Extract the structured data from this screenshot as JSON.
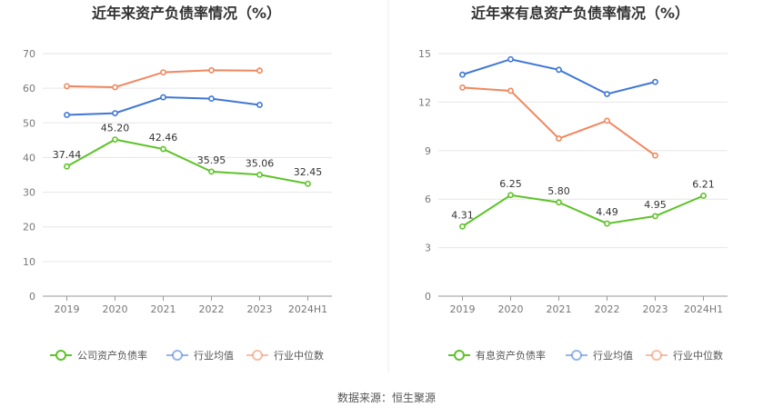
{
  "chart_data": [
    {
      "type": "line",
      "title": "近年来资产负债率情况（%）",
      "categories": [
        "2019",
        "2020",
        "2021",
        "2022",
        "2023",
        "2024H1"
      ],
      "ylim": [
        0,
        70
      ],
      "yticks": [
        0,
        10,
        20,
        30,
        40,
        50,
        60,
        70
      ],
      "grid": true,
      "legend_position": "bottom",
      "series": [
        {
          "name": "公司资产负债率",
          "color": "#5dc328",
          "labeled": true,
          "values": [
            37.44,
            45.2,
            42.46,
            35.95,
            35.06,
            32.45
          ]
        },
        {
          "name": "行业均值",
          "color": "#3f76d6",
          "labeled": false,
          "values": [
            52.3,
            52.8,
            57.4,
            57.0,
            55.2,
            null
          ]
        },
        {
          "name": "行业中位数",
          "color": "#f0875e",
          "labeled": false,
          "values": [
            60.6,
            60.3,
            64.6,
            65.2,
            65.1,
            null
          ]
        }
      ],
      "data_labels": [
        "37.44",
        "45.20",
        "42.46",
        "35.95",
        "35.06",
        "32.45"
      ]
    },
    {
      "type": "line",
      "title": "近年来有息资产负债率情况（%）",
      "categories": [
        "2019",
        "2020",
        "2021",
        "2022",
        "2023",
        "2024H1"
      ],
      "ylim": [
        0,
        15
      ],
      "yticks": [
        0,
        3,
        6,
        9,
        12,
        15
      ],
      "grid": true,
      "legend_position": "bottom",
      "series": [
        {
          "name": "有息资产负债率",
          "color": "#5dc328",
          "labeled": true,
          "values": [
            4.31,
            6.25,
            5.8,
            4.49,
            4.95,
            6.21
          ]
        },
        {
          "name": "行业均值",
          "color": "#3f76d6",
          "labeled": false,
          "values": [
            13.7,
            14.65,
            14.0,
            12.5,
            13.25,
            null
          ]
        },
        {
          "name": "行业中位数",
          "color": "#f0875e",
          "labeled": false,
          "values": [
            12.9,
            12.7,
            9.75,
            10.85,
            8.7,
            null
          ]
        }
      ],
      "data_labels": [
        "4.31",
        "6.25",
        "5.80",
        "4.49",
        "4.95",
        "6.21"
      ]
    }
  ],
  "footer": {
    "source": "数据来源：恒生聚源"
  }
}
